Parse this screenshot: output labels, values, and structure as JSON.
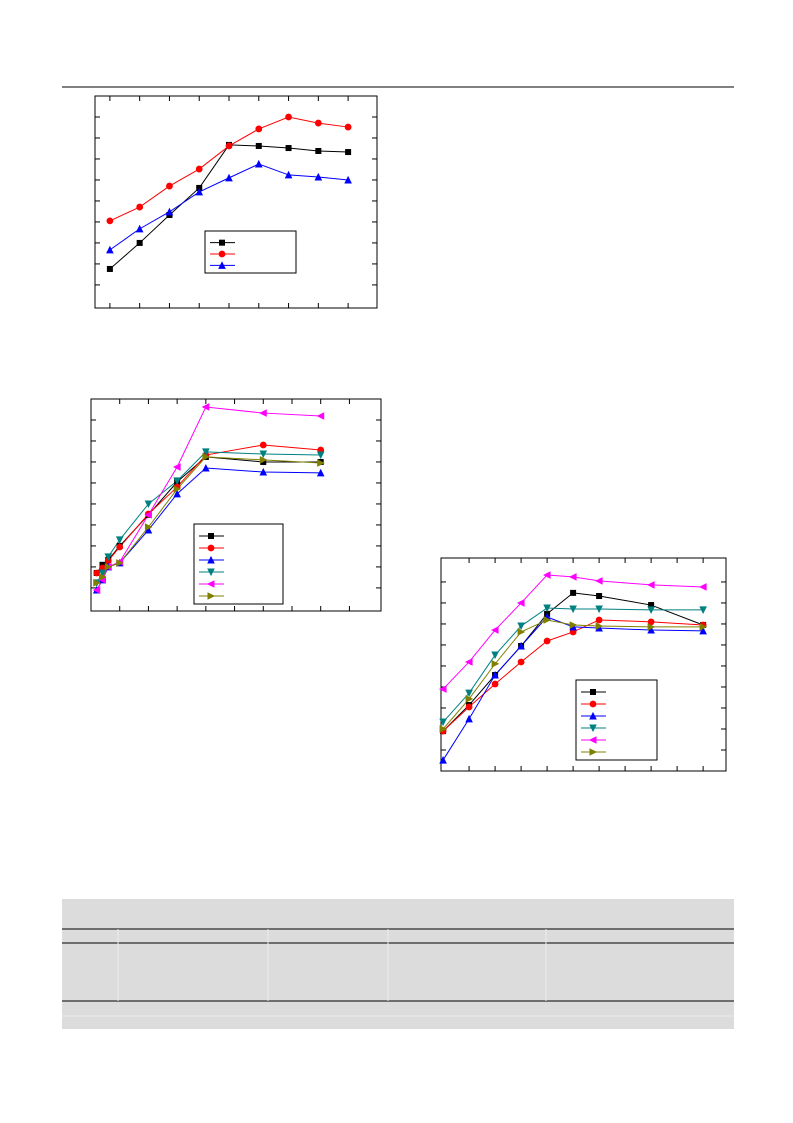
{
  "chart_data": [
    {
      "type": "line",
      "marker_size": 5,
      "x": [
        1,
        2,
        3,
        4,
        5,
        6,
        7,
        8,
        9
      ],
      "xlim": [
        0.5,
        9.97
      ],
      "xticks": [
        1,
        2,
        3,
        4,
        5,
        6,
        7,
        8,
        9
      ],
      "ylim": [
        -1.1,
        9.0
      ],
      "yticks": [
        0,
        1,
        2,
        3,
        4,
        5,
        6,
        7,
        8
      ],
      "series": [
        {
          "color": "#000000",
          "marker": "square",
          "values": [
            0.76,
            2.0,
            3.33,
            4.62,
            6.67,
            6.62,
            6.52,
            6.38,
            6.33
          ]
        },
        {
          "color": "#ff0000",
          "marker": "circle",
          "values": [
            3.05,
            3.71,
            4.71,
            5.52,
            6.62,
            7.43,
            8.0,
            7.71,
            7.52
          ]
        },
        {
          "color": "#0000ff",
          "marker": "triangle-up",
          "values": [
            1.67,
            2.67,
            3.48,
            4.43,
            5.1,
            5.76,
            5.24,
            5.14,
            5.0
          ]
        }
      ]
    },
    {
      "type": "line",
      "marker_size": 5,
      "x": [
        0.2,
        0.4,
        0.6,
        1,
        2,
        3,
        4,
        6,
        8
      ],
      "xlim": [
        0,
        10.1
      ],
      "xticks": [
        1,
        2,
        3,
        4,
        5,
        6,
        7,
        8,
        9
      ],
      "ylim": [
        -1.1,
        9.0
      ],
      "yticks": [
        0,
        1,
        2,
        3,
        4,
        5,
        6,
        7,
        8
      ],
      "series": [
        {
          "color": "#000000",
          "marker": "square",
          "values": [
            0.71,
            1.1,
            1.33,
            2.0,
            3.48,
            5.05,
            6.24,
            6.0,
            6.0
          ]
        },
        {
          "color": "#ff0000",
          "marker": "circle",
          "values": [
            0.71,
            0.95,
            1.29,
            1.95,
            3.52,
            4.81,
            6.33,
            6.81,
            6.57
          ]
        },
        {
          "color": "#0000ff",
          "marker": "triangle-up",
          "values": [
            -0.1,
            0.38,
            1.0,
            1.19,
            2.76,
            4.48,
            5.71,
            5.52,
            5.48
          ]
        },
        {
          "color": "#008080",
          "marker": "triangle-down",
          "values": [
            0.24,
            0.71,
            1.48,
            2.29,
            4.0,
            5.1,
            6.48,
            6.38,
            6.33
          ]
        },
        {
          "color": "#ff00ff",
          "marker": "triangle-left",
          "values": [
            -0.1,
            0.38,
            1.0,
            1.24,
            3.48,
            5.76,
            8.62,
            8.33,
            8.19
          ]
        },
        {
          "color": "#808000",
          "marker": "triangle-right",
          "values": [
            0.24,
            0.52,
            1.0,
            1.19,
            2.9,
            4.71,
            6.24,
            6.1,
            5.95
          ]
        }
      ]
    },
    {
      "type": "line",
      "marker_size": 5,
      "x": [
        0,
        1,
        2,
        3,
        4,
        5,
        6,
        8,
        10
      ],
      "xlim": [
        -0.08,
        10.88
      ],
      "xticks": [
        1,
        2,
        3,
        4,
        5,
        6,
        7,
        8,
        9,
        10
      ],
      "ylim": [
        -1.0,
        9.14
      ],
      "yticks": [
        0,
        1,
        2,
        3,
        4,
        5,
        6,
        7,
        8
      ],
      "series": [
        {
          "color": "#000000",
          "marker": "square",
          "values": [
            0.9,
            2.14,
            3.57,
            4.95,
            6.48,
            7.48,
            7.33,
            6.9,
            5.95
          ]
        },
        {
          "color": "#ff0000",
          "marker": "circle",
          "values": [
            0.9,
            2.05,
            3.14,
            4.19,
            5.19,
            5.62,
            6.19,
            6.1,
            5.95
          ]
        },
        {
          "color": "#0000ff",
          "marker": "triangle-up",
          "values": [
            -0.48,
            1.48,
            3.57,
            4.95,
            6.33,
            5.86,
            5.81,
            5.71,
            5.67
          ]
        },
        {
          "color": "#008080",
          "marker": "triangle-down",
          "values": [
            1.33,
            2.71,
            4.52,
            5.9,
            6.76,
            6.71,
            6.71,
            6.67,
            6.67
          ]
        },
        {
          "color": "#ff00ff",
          "marker": "triangle-left",
          "values": [
            2.9,
            4.19,
            5.71,
            7.0,
            8.33,
            8.24,
            8.05,
            7.86,
            7.76
          ]
        },
        {
          "color": "#808000",
          "marker": "triangle-right",
          "values": [
            1.0,
            2.43,
            4.1,
            5.62,
            6.19,
            5.95,
            5.9,
            5.86,
            5.86
          ]
        }
      ]
    }
  ]
}
